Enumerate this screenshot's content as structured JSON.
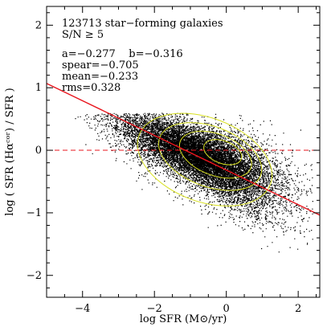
{
  "chart_data": {
    "type": "scatter",
    "xlabel": "log SFR (M⊙/yr)",
    "ylabel": "log ( SFR (Hαᶜᵒʳ) / SFR )",
    "xlim": [
      -5,
      2.6
    ],
    "ylim": [
      -2.35,
      2.3
    ],
    "x_ticks": [
      -4,
      -2,
      0,
      2
    ],
    "x_tick_labels": [
      "−4",
      "−2",
      "0",
      "2"
    ],
    "y_ticks": [
      -2,
      -1,
      0,
      1,
      2
    ],
    "y_tick_labels": [
      "−2",
      "−1",
      "0",
      "1",
      "2"
    ],
    "grid": false,
    "annotations": [
      "123713 star−forming galaxies",
      "S/N ≥ 5",
      "a=−0.277    b=−0.316",
      "spear=−0.705",
      "mean=−0.233",
      "rms=0.328"
    ],
    "fit_line": {
      "slope": -0.277,
      "intercept": -0.316,
      "color": "#e8141c"
    },
    "reference_line": {
      "y": 0,
      "style": "dashed",
      "color": "#e8141c"
    },
    "contour_color": "#d8e020",
    "point_color": "#000000",
    "point_cloud": {
      "n_galaxies": 123713,
      "center": [
        -0.6,
        -0.12
      ],
      "x_extent": [
        -4.5,
        2.4
      ],
      "y_extent": [
        -1.85,
        0.6
      ]
    },
    "contours": [
      {
        "level": 1,
        "center": [
          -0.6,
          -0.15
        ],
        "rx": 1.95,
        "ry": 0.67
      },
      {
        "level": 2,
        "center": [
          -0.45,
          -0.1
        ],
        "rx": 1.5,
        "ry": 0.48
      },
      {
        "level": 3,
        "center": [
          -0.3,
          -0.07
        ],
        "rx": 1.05,
        "ry": 0.33
      },
      {
        "level": 4,
        "center": [
          -0.1,
          -0.03
        ],
        "rx": 0.55,
        "ry": 0.18
      }
    ]
  }
}
